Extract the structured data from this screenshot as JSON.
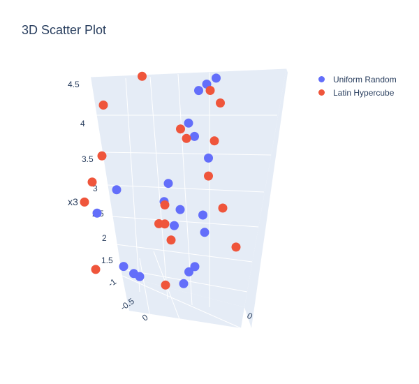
{
  "title": "3D Scatter Plot",
  "chart_data": {
    "type": "scatter",
    "title": "3D Scatter Plot",
    "zlabel": "x3",
    "z_ticks": [
      "1.5",
      "2",
      "2.5",
      "3",
      "3.5",
      "4",
      "4.5"
    ],
    "x_ticks": [
      "-1",
      "-0.5",
      "0"
    ],
    "y_ticks": [
      "0"
    ],
    "legend": {
      "position": "top-right"
    },
    "series": [
      {
        "name": "Uniform Random",
        "color": "#636efa",
        "points": [
          [
            0.35,
            0.1,
            4.68
          ],
          [
            0.2,
            0.15,
            4.51
          ],
          [
            0.15,
            0.05,
            4.4
          ],
          [
            0.1,
            -0.1,
            3.82
          ],
          [
            0.15,
            -0.05,
            3.58
          ],
          [
            0.25,
            0.1,
            3.18
          ],
          [
            -0.4,
            -0.9,
            2.62
          ],
          [
            0.0,
            -0.4,
            2.75
          ],
          [
            0.0,
            -0.5,
            2.44
          ],
          [
            0.1,
            -0.3,
            2.28
          ],
          [
            -0.6,
            -1.0,
            2.15
          ],
          [
            0.15,
            0.15,
            2.09
          ],
          [
            0.05,
            -0.35,
            1.98
          ],
          [
            0.2,
            0.1,
            1.8
          ],
          [
            0.1,
            0.05,
            1.15
          ],
          [
            0.05,
            0.0,
            1.05
          ],
          [
            -0.5,
            -0.55,
            1.1
          ],
          [
            -0.45,
            -0.4,
            0.95
          ],
          [
            -0.4,
            -0.35,
            0.9
          ],
          [
            -0.1,
            0.15,
            0.75
          ]
        ]
      },
      {
        "name": "Latin Hypercube",
        "color": "#EF553B",
        "points": [
          [
            -0.15,
            -0.75,
            4.75
          ],
          [
            0.3,
            0.05,
            4.45
          ],
          [
            0.35,
            0.2,
            4.2
          ],
          [
            -0.6,
            -0.85,
            4.1
          ],
          [
            0.05,
            -0.2,
            3.72
          ],
          [
            0.1,
            -0.15,
            3.55
          ],
          [
            0.3,
            0.15,
            3.5
          ],
          [
            -0.7,
            -0.7,
            3.1
          ],
          [
            0.25,
            0.1,
            2.85
          ],
          [
            -0.8,
            -0.75,
            2.6
          ],
          [
            -0.1,
            -0.3,
            2.3
          ],
          [
            0.3,
            0.35,
            2.22
          ],
          [
            -0.9,
            -0.75,
            2.2
          ],
          [
            -0.15,
            -0.35,
            1.95
          ],
          [
            -0.1,
            -0.3,
            1.95
          ],
          [
            -0.1,
            -0.15,
            1.62
          ],
          [
            0.5,
            0.3,
            1.58
          ],
          [
            -0.7,
            -0.85,
            1.05
          ],
          [
            -0.2,
            -0.1,
            0.75
          ]
        ]
      }
    ]
  }
}
